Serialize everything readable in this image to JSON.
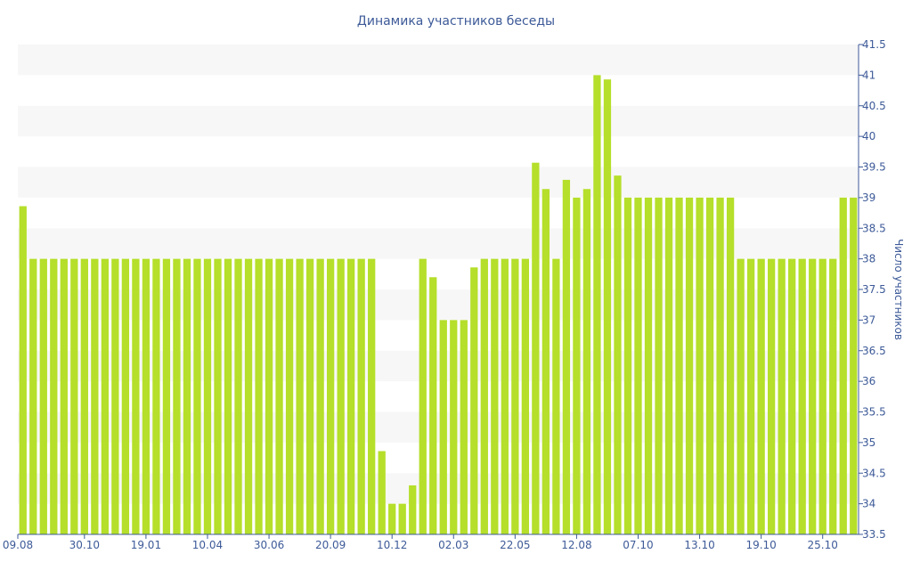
{
  "chart_data": {
    "type": "bar",
    "title": "Динамика участников беседы",
    "xlabel": "",
    "ylabel": "Число участников",
    "ylim": [
      33.5,
      41.5
    ],
    "y_axis_side": "right",
    "y_ticks": [
      "33.5",
      "34",
      "34.5",
      "35",
      "35.5",
      "36",
      "36.5",
      "37",
      "37.5",
      "38",
      "38.5",
      "39",
      "39.5",
      "40",
      "40.5",
      "41",
      "41.5"
    ],
    "x_tick_labels": [
      {
        "index": 0,
        "label": "09.08"
      },
      {
        "index": 6,
        "label": "30.10"
      },
      {
        "index": 12,
        "label": "19.01"
      },
      {
        "index": 18,
        "label": "10.04"
      },
      {
        "index": 24,
        "label": "30.06"
      },
      {
        "index": 30,
        "label": "20.09"
      },
      {
        "index": 36,
        "label": "10.12"
      },
      {
        "index": 42,
        "label": "02.03"
      },
      {
        "index": 48,
        "label": "22.05"
      },
      {
        "index": 54,
        "label": "12.08"
      },
      {
        "index": 60,
        "label": "07.10"
      },
      {
        "index": 66,
        "label": "13.10"
      },
      {
        "index": 72,
        "label": "19.10"
      },
      {
        "index": 78,
        "label": "25.10"
      }
    ],
    "values": [
      38.86,
      38,
      38,
      38,
      38,
      38,
      38,
      38,
      38,
      38,
      38,
      38,
      38,
      38,
      38,
      38,
      38,
      38,
      38,
      38,
      38,
      38,
      38,
      38,
      38,
      38,
      38,
      38,
      38,
      38,
      38,
      38,
      38,
      38,
      38,
      34.86,
      34,
      34,
      34.3,
      38,
      37.7,
      37,
      37,
      37,
      37.86,
      38,
      38,
      38,
      38,
      38,
      39.57,
      39.14,
      38,
      39.29,
      39,
      39.14,
      41,
      40.93,
      39.36,
      39,
      39,
      39,
      39,
      39,
      39,
      39,
      39,
      39,
      39,
      39,
      38,
      38,
      38,
      38,
      38,
      38,
      38,
      38,
      38,
      38,
      39,
      39
    ],
    "grid": "alternating horizontal bands",
    "legend": "none",
    "bar_color": "#b5df2a"
  }
}
